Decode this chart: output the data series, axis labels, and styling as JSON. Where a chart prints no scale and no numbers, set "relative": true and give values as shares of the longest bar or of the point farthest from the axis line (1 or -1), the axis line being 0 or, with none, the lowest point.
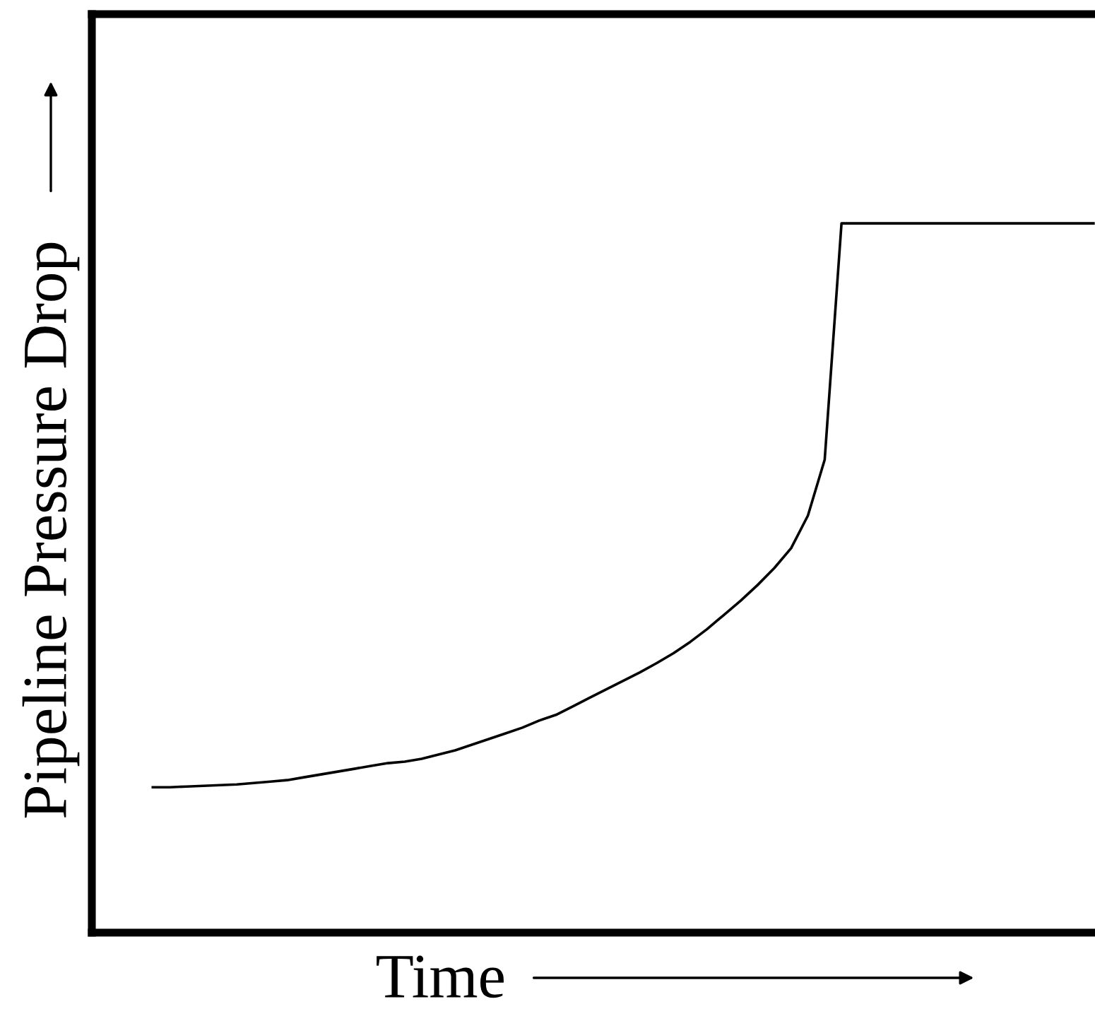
{
  "chart_data": {
    "type": "line",
    "relative": true,
    "xlabel": "Time",
    "ylabel": "Pipeline Pressure Drop",
    "color": "#000000",
    "marker": "none",
    "line_style": "solid",
    "categories": [
      null,
      null,
      null,
      null,
      null,
      null,
      null,
      null,
      null,
      null,
      null,
      null,
      null,
      null,
      null,
      null,
      null,
      null,
      null,
      null,
      null,
      null,
      null,
      null,
      null,
      null,
      null,
      null,
      null,
      null,
      null,
      null,
      null,
      null,
      null,
      null,
      null,
      null,
      null,
      null,
      null,
      null,
      null,
      null,
      null,
      null,
      null,
      null,
      null,
      null,
      null,
      null,
      null,
      null,
      null,
      null,
      null
    ],
    "values": [
      0.205,
      0.205,
      0.206,
      0.207,
      0.208,
      0.209,
      0.211,
      0.213,
      0.215,
      0.219,
      0.223,
      0.227,
      0.231,
      0.235,
      0.239,
      0.241,
      0.245,
      0.251,
      0.257,
      0.265,
      0.273,
      0.281,
      0.289,
      0.299,
      0.307,
      0.319,
      0.331,
      0.343,
      0.355,
      0.367,
      0.38,
      0.394,
      0.41,
      0.428,
      0.448,
      0.468,
      0.49,
      0.514,
      0.542,
      0.588,
      0.667,
      1,
      1,
      1,
      1,
      1,
      1,
      1,
      1,
      1,
      1,
      1,
      1,
      1,
      1,
      1,
      1
    ]
  }
}
